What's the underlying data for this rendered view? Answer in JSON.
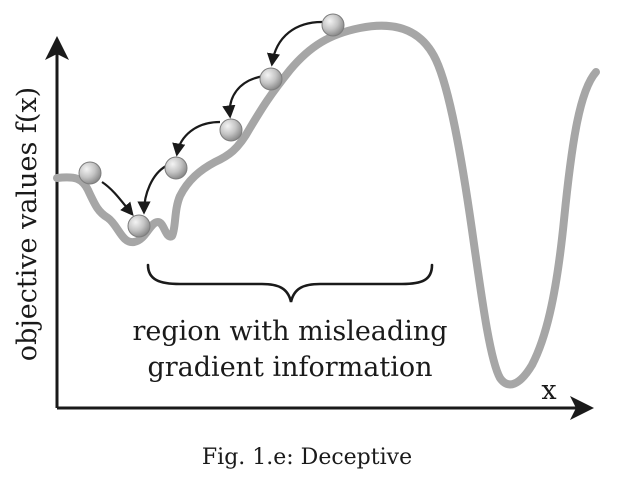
{
  "diagram": {
    "y_axis_label": "objective values f(x)",
    "x_axis_label": "x",
    "region_label_line1": "region with misleading",
    "region_label_line2": "gradient information",
    "caption": "Fig. 1.e: Deceptive"
  },
  "colors": {
    "curve": "#a6a6a6",
    "axes": "#1a1a1a",
    "ball_light": "#f0f0f0",
    "ball_dark": "#8a8a8a",
    "arrow": "#1a1a1a"
  }
}
